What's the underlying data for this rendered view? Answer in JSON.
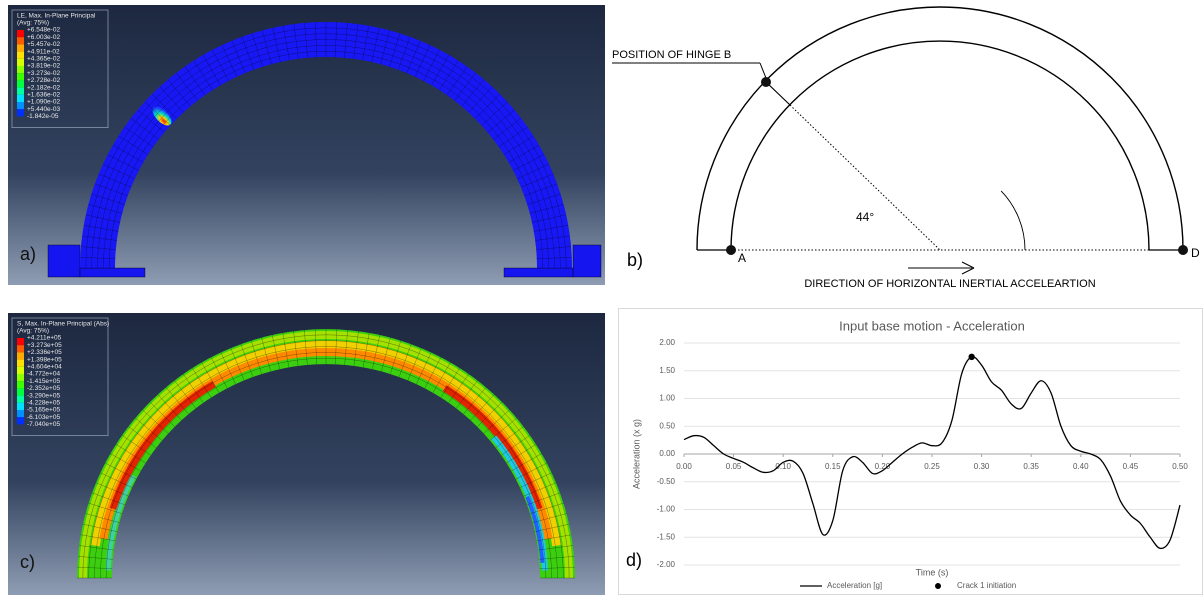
{
  "panel_a": {
    "label": "a)",
    "legend": {
      "title": "LE, Max. In-Plane Principal",
      "subtitle": "(Avg: 75%)",
      "entries": [
        "+6.548e-02",
        "+6.003e-02",
        "+5.457e-02",
        "+4.911e-02",
        "+4.365e-02",
        "+3.819e-02",
        "+3.273e-02",
        "+2.728e-02",
        "+2.182e-02",
        "+1.636e-02",
        "+1.090e-02",
        "+5.440e-03",
        "-1.842e-05"
      ]
    }
  },
  "panel_b": {
    "label": "b)",
    "hinge_label": "POSITION OF HINGE B",
    "angle_label": "44°",
    "point_a": "A",
    "point_d": "D",
    "direction_label": "DIRECTION OF HORIZONTAL INERTIAL ACCELEARTION"
  },
  "panel_c": {
    "label": "c)",
    "legend": {
      "title": "S, Max. In-Plane Principal (Abs)",
      "subtitle": "(Avg: 75%)",
      "entries": [
        "+4.211e+05",
        "+3.273e+05",
        "+2.336e+05",
        "+1.398e+05",
        "+4.604e+04",
        "-4.772e+04",
        "-1.415e+05",
        "-2.352e+05",
        "-3.290e+05",
        "-4.228e+05",
        "-5.165e+05",
        "-6.103e+05",
        "-7.040e+05"
      ]
    }
  },
  "chart_data": {
    "type": "line",
    "panel_label": "d)",
    "title": "Input base motion - Acceleration",
    "x_label": "Time (s)",
    "y_label": "Acceleration (x g)",
    "x": [
      0,
      0.01,
      0.02,
      0.03,
      0.04,
      0.05,
      0.06,
      0.07,
      0.08,
      0.09,
      0.1,
      0.11,
      0.12,
      0.13,
      0.14,
      0.15,
      0.16,
      0.17,
      0.18,
      0.19,
      0.2,
      0.21,
      0.22,
      0.23,
      0.24,
      0.25,
      0.26,
      0.27,
      0.28,
      0.29,
      0.3,
      0.31,
      0.32,
      0.33,
      0.34,
      0.35,
      0.36,
      0.37,
      0.38,
      0.39,
      0.4,
      0.41,
      0.42,
      0.43,
      0.44,
      0.45,
      0.46,
      0.47,
      0.48,
      0.49,
      0.5
    ],
    "series": [
      {
        "name": "Acceleration [g]",
        "color": "#000000",
        "values": [
          0.26,
          0.33,
          0.3,
          0.15,
          0.0,
          -0.08,
          -0.15,
          -0.25,
          -0.33,
          -0.3,
          -0.15,
          -0.13,
          -0.35,
          -0.9,
          -1.45,
          -1.2,
          -0.3,
          -0.05,
          -0.15,
          -0.35,
          -0.3,
          -0.15,
          0.0,
          0.12,
          0.2,
          0.15,
          0.2,
          0.6,
          1.45,
          1.75,
          1.6,
          1.3,
          1.15,
          0.9,
          0.82,
          1.1,
          1.32,
          1.1,
          0.5,
          0.15,
          0.05,
          0.0,
          -0.1,
          -0.4,
          -0.85,
          -1.1,
          -1.25,
          -1.5,
          -1.7,
          -1.55,
          -0.92
        ]
      },
      {
        "name": "Crack 1 initiation",
        "color": "#000000",
        "marker": true,
        "x": [
          0.29
        ],
        "values": [
          1.75
        ]
      }
    ],
    "xlim": [
      0,
      0.5
    ],
    "ylim": [
      -2,
      2
    ],
    "xticks": [
      {
        "value": 0,
        "label": "0.00"
      },
      {
        "value": 0.05,
        "label": "0.05"
      },
      {
        "value": 0.1,
        "label": "0.10"
      },
      {
        "value": 0.15,
        "label": "0.15"
      },
      {
        "value": 0.2,
        "label": "0.20"
      },
      {
        "value": 0.25,
        "label": "0.25"
      },
      {
        "value": 0.3,
        "label": "0.30"
      },
      {
        "value": 0.35,
        "label": "0.35"
      },
      {
        "value": 0.4,
        "label": "0.40"
      },
      {
        "value": 0.45,
        "label": "0.45"
      },
      {
        "value": 0.5,
        "label": "0.50"
      }
    ],
    "yticks": [
      {
        "value": 2,
        "label": "2.00"
      },
      {
        "value": 1.5,
        "label": "1.50"
      },
      {
        "value": 1,
        "label": "1.00"
      },
      {
        "value": 0.5,
        "label": "0.50"
      },
      {
        "value": 0,
        "label": "0.00"
      },
      {
        "value": -0.5,
        "label": "-0.50"
      },
      {
        "value": -1,
        "label": "-1.00"
      },
      {
        "value": -1.5,
        "label": "-1.50"
      },
      {
        "value": -2,
        "label": "-2.00"
      }
    ],
    "grid": true
  }
}
